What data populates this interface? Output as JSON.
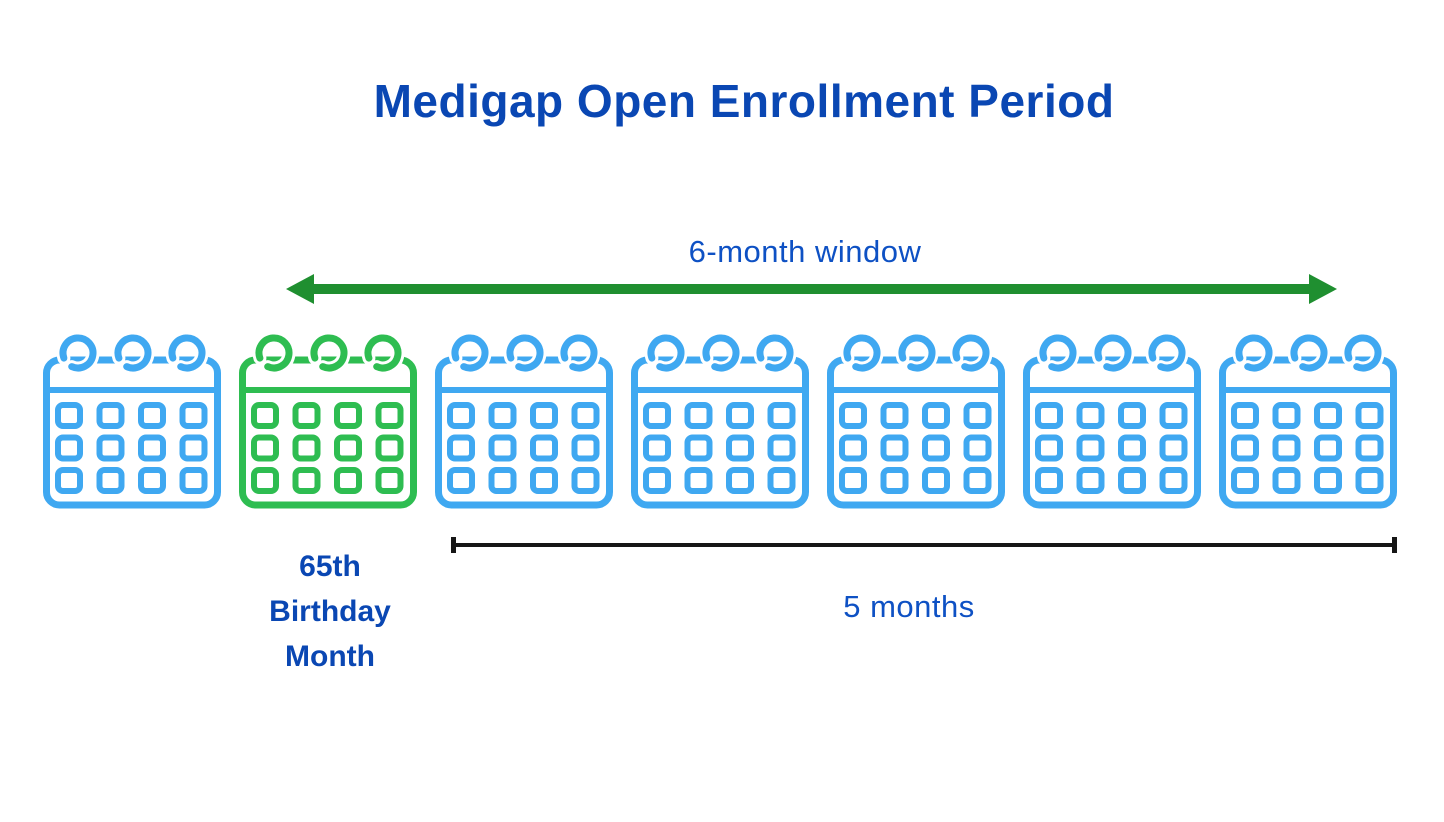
{
  "title": "Medigap Open Enrollment Period",
  "colors": {
    "title_blue": "#0a47b3",
    "label_blue": "#0e51c4",
    "calendar_blue": "#3fa8f1",
    "calendar_green": "#2ebd51",
    "arrow_green": "#1f8f30",
    "line_black": "#161616"
  },
  "enrollment_window": {
    "label": "6-month window"
  },
  "calendars": {
    "count": 7,
    "items": [
      {
        "name": "month-1",
        "variant": "blue"
      },
      {
        "name": "month-2-birthday",
        "variant": "green"
      },
      {
        "name": "month-3",
        "variant": "blue"
      },
      {
        "name": "month-4",
        "variant": "blue"
      },
      {
        "name": "month-5",
        "variant": "blue"
      },
      {
        "name": "month-6",
        "variant": "blue"
      },
      {
        "name": "month-7",
        "variant": "blue"
      }
    ]
  },
  "birthday_label": "65th\nBirthday\nMonth",
  "post_birthday_span": {
    "label": "5 months"
  }
}
